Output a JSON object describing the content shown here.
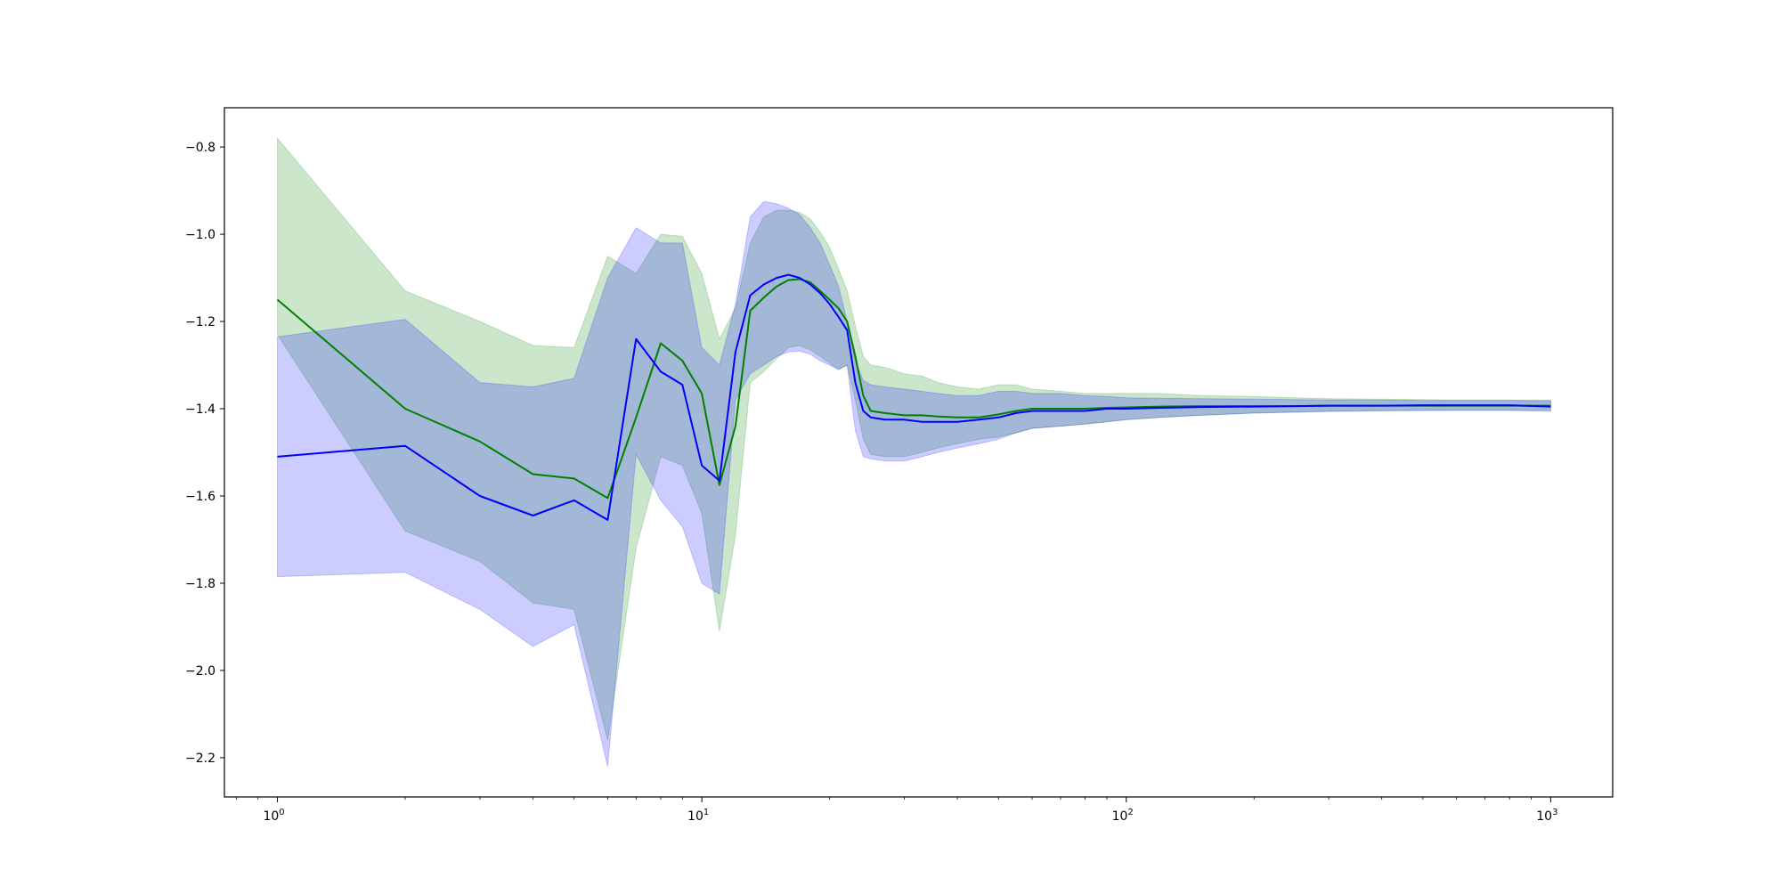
{
  "chart_data": {
    "type": "line",
    "title": "",
    "xlabel": "",
    "ylabel": "",
    "xscale": "log",
    "xlim": [
      0.75,
      1400
    ],
    "ylim": [
      -2.29,
      -0.71
    ],
    "grid": false,
    "legend": "none",
    "x_ticks": [
      {
        "value": 1,
        "base": "10",
        "exp": "0"
      },
      {
        "value": 10,
        "base": "10",
        "exp": "1"
      },
      {
        "value": 100,
        "base": "10",
        "exp": "2"
      },
      {
        "value": 1000,
        "base": "10",
        "exp": "3"
      }
    ],
    "y_ticks": [
      {
        "value": -0.8,
        "label": "−0.8"
      },
      {
        "value": -1.0,
        "label": "−1.0"
      },
      {
        "value": -1.2,
        "label": "−1.2"
      },
      {
        "value": -1.4,
        "label": "−1.4"
      },
      {
        "value": -1.6,
        "label": "−1.6"
      },
      {
        "value": -1.8,
        "label": "−1.8"
      },
      {
        "value": -2.0,
        "label": "−2.0"
      },
      {
        "value": -2.2,
        "label": "−2.2"
      }
    ],
    "x": [
      1,
      2,
      3,
      4,
      5,
      6,
      7,
      8,
      9,
      10,
      11,
      12,
      13,
      14,
      15,
      16,
      17,
      18,
      19,
      20,
      21,
      22,
      23,
      24,
      25,
      27,
      30,
      33,
      36,
      40,
      45,
      50,
      55,
      60,
      70,
      80,
      90,
      100,
      120,
      150,
      200,
      250,
      300,
      400,
      500,
      600,
      800,
      1000
    ],
    "series": [
      {
        "color": "#008000",
        "band_color": "#008000",
        "band_opacity": 0.2,
        "values": [
          -1.15,
          -1.4,
          -1.475,
          -1.55,
          -1.56,
          -1.605,
          -1.42,
          -1.25,
          -1.29,
          -1.365,
          -1.575,
          -1.44,
          -1.175,
          -1.145,
          -1.12,
          -1.105,
          -1.103,
          -1.11,
          -1.13,
          -1.15,
          -1.17,
          -1.2,
          -1.28,
          -1.37,
          -1.405,
          -1.41,
          -1.415,
          -1.415,
          -1.418,
          -1.42,
          -1.42,
          -1.413,
          -1.405,
          -1.4,
          -1.4,
          -1.4,
          -1.398,
          -1.397,
          -1.395,
          -1.394,
          -1.394,
          -1.394,
          -1.393,
          -1.393,
          -1.393,
          -1.393,
          -1.393,
          -1.393
        ],
        "upper": [
          -0.78,
          -1.13,
          -1.2,
          -1.255,
          -1.26,
          -1.05,
          -1.09,
          -1.0,
          -1.005,
          -1.09,
          -1.24,
          -1.17,
          -1.02,
          -0.96,
          -0.945,
          -0.945,
          -0.95,
          -0.965,
          -0.995,
          -1.03,
          -1.08,
          -1.13,
          -1.21,
          -1.28,
          -1.3,
          -1.305,
          -1.32,
          -1.325,
          -1.34,
          -1.35,
          -1.355,
          -1.345,
          -1.345,
          -1.355,
          -1.36,
          -1.365,
          -1.365,
          -1.365,
          -1.365,
          -1.37,
          -1.372,
          -1.375,
          -1.377,
          -1.378,
          -1.379,
          -1.38,
          -1.38,
          -1.38
        ],
        "lower": [
          -1.23,
          -1.68,
          -1.75,
          -1.845,
          -1.86,
          -2.16,
          -1.72,
          -1.51,
          -1.53,
          -1.64,
          -1.91,
          -1.69,
          -1.34,
          -1.315,
          -1.285,
          -1.26,
          -1.255,
          -1.265,
          -1.28,
          -1.295,
          -1.31,
          -1.3,
          -1.38,
          -1.47,
          -1.505,
          -1.51,
          -1.51,
          -1.5,
          -1.49,
          -1.48,
          -1.47,
          -1.465,
          -1.455,
          -1.445,
          -1.44,
          -1.435,
          -1.43,
          -1.425,
          -1.42,
          -1.415,
          -1.41,
          -1.408,
          -1.406,
          -1.404,
          -1.404,
          -1.403,
          -1.403,
          -1.403
        ]
      },
      {
        "color": "#0000ff",
        "band_color": "#0000ff",
        "band_opacity": 0.2,
        "values": [
          -1.51,
          -1.485,
          -1.6,
          -1.645,
          -1.61,
          -1.655,
          -1.24,
          -1.315,
          -1.345,
          -1.53,
          -1.565,
          -1.27,
          -1.14,
          -1.115,
          -1.1,
          -1.093,
          -1.1,
          -1.115,
          -1.135,
          -1.16,
          -1.19,
          -1.22,
          -1.34,
          -1.405,
          -1.42,
          -1.425,
          -1.425,
          -1.43,
          -1.43,
          -1.43,
          -1.425,
          -1.42,
          -1.41,
          -1.405,
          -1.405,
          -1.405,
          -1.4,
          -1.4,
          -1.398,
          -1.396,
          -1.395,
          -1.394,
          -1.393,
          -1.393,
          -1.392,
          -1.392,
          -1.392,
          -1.395
        ],
        "upper": [
          -1.235,
          -1.195,
          -1.34,
          -1.35,
          -1.33,
          -1.1,
          -0.985,
          -1.02,
          -1.02,
          -1.26,
          -1.3,
          -1.16,
          -0.96,
          -0.925,
          -0.93,
          -0.94,
          -0.955,
          -0.985,
          -1.02,
          -1.07,
          -1.12,
          -1.2,
          -1.29,
          -1.335,
          -1.345,
          -1.35,
          -1.355,
          -1.36,
          -1.365,
          -1.37,
          -1.37,
          -1.36,
          -1.36,
          -1.365,
          -1.365,
          -1.37,
          -1.372,
          -1.375,
          -1.376,
          -1.377,
          -1.378,
          -1.379,
          -1.38,
          -1.38,
          -1.381,
          -1.381,
          -1.381,
          -1.382
        ],
        "lower": [
          -1.785,
          -1.775,
          -1.86,
          -1.945,
          -1.895,
          -2.22,
          -1.505,
          -1.61,
          -1.67,
          -1.8,
          -1.825,
          -1.38,
          -1.32,
          -1.3,
          -1.28,
          -1.27,
          -1.268,
          -1.275,
          -1.29,
          -1.3,
          -1.31,
          -1.3,
          -1.45,
          -1.51,
          -1.515,
          -1.52,
          -1.52,
          -1.51,
          -1.5,
          -1.49,
          -1.48,
          -1.47,
          -1.455,
          -1.445,
          -1.44,
          -1.435,
          -1.43,
          -1.425,
          -1.42,
          -1.415,
          -1.41,
          -1.408,
          -1.406,
          -1.405,
          -1.404,
          -1.404,
          -1.404,
          -1.406
        ]
      }
    ]
  }
}
